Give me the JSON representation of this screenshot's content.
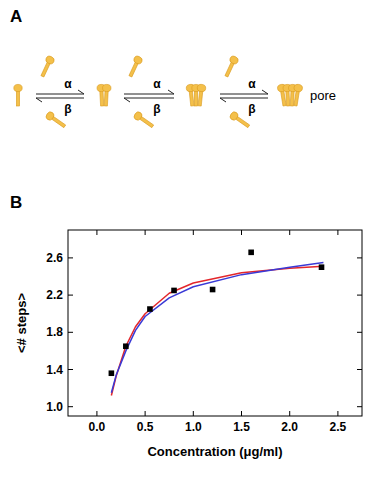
{
  "diagram": {
    "label": "A",
    "steps": [
      {
        "forward": "α",
        "backward": "β"
      },
      {
        "forward": "α",
        "backward": "β"
      },
      {
        "forward": "α",
        "backward": "β"
      }
    ],
    "product": "pore"
  },
  "chart_data": {
    "type": "scatter",
    "panel_label": "B",
    "x_label": "Concentration (μg/ml)",
    "y_label": "<# steps>",
    "xlim": [
      -0.3,
      2.75
    ],
    "ylim": [
      0.9,
      2.9
    ],
    "xticks": [
      {
        "value": 0,
        "label": "0.0"
      },
      {
        "value": 0.5,
        "label": "0.5"
      },
      {
        "value": 1,
        "label": "1.0"
      },
      {
        "value": 1.5,
        "label": "1.5"
      },
      {
        "value": 2,
        "label": "2.0"
      },
      {
        "value": 2.5,
        "label": "2.5"
      }
    ],
    "yticks": [
      {
        "value": 1,
        "label": "1.0"
      },
      {
        "value": 1.4,
        "label": "1.4"
      },
      {
        "value": 1.8,
        "label": "1.8"
      },
      {
        "value": 2.2,
        "label": "2.2"
      },
      {
        "value": 2.6,
        "label": "2.6"
      }
    ],
    "grid": false,
    "series": [
      {
        "type": "scatter",
        "marker": "square",
        "color": "#000000",
        "x": [
          0.15,
          0.3,
          0.55,
          0.8,
          1.2,
          1.6,
          2.33
        ],
        "values": [
          1.36,
          1.65,
          2.05,
          2.25,
          2.26,
          2.66,
          2.5
        ]
      },
      {
        "type": "line",
        "line_style": "solid",
        "color": "#e3262b",
        "x": [
          0.15,
          0.2,
          0.3,
          0.4,
          0.5,
          0.75,
          1.0,
          1.5,
          2.0,
          2.35
        ],
        "values": [
          1.12,
          1.33,
          1.65,
          1.86,
          2.0,
          2.22,
          2.33,
          2.44,
          2.49,
          2.51
        ]
      },
      {
        "type": "line",
        "line_style": "solid",
        "color": "#3a3ad6",
        "x": [
          0.15,
          0.2,
          0.3,
          0.4,
          0.5,
          0.75,
          1.0,
          1.5,
          2.0,
          2.35
        ],
        "values": [
          1.15,
          1.34,
          1.6,
          1.82,
          1.97,
          2.17,
          2.29,
          2.42,
          2.5,
          2.55
        ]
      }
    ]
  }
}
